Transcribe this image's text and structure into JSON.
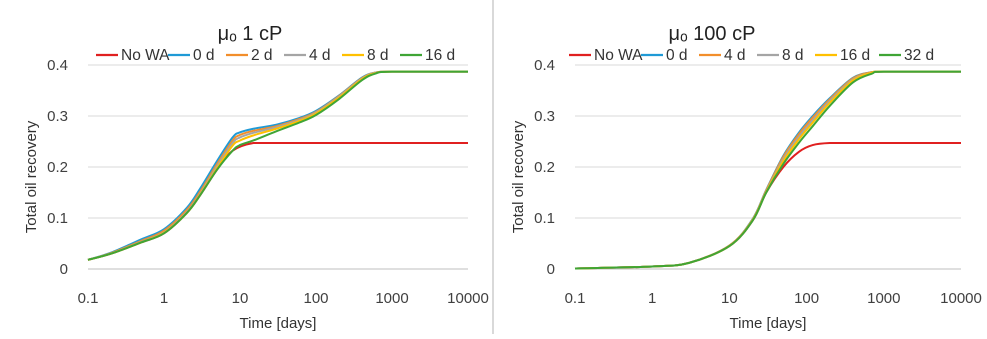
{
  "chart_data": [
    {
      "type": "line",
      "title": "μₒ 1 cP",
      "xlabel": "Time [days]",
      "ylabel": "Total oil recovery",
      "x_scale": "log",
      "xlim": [
        0.1,
        10000
      ],
      "ylim": [
        0,
        0.4
      ],
      "x_ticks": [
        "0.1",
        "1",
        "10",
        "100",
        "1000",
        "10000"
      ],
      "y_ticks": [
        "0",
        "0.1",
        "0.2",
        "0.3",
        "0.4"
      ],
      "grid": "horizontal",
      "legend_position": "top",
      "series": [
        {
          "name": "No WA",
          "color": "#e02020",
          "x": [
            0.1,
            0.2,
            0.5,
            1,
            2,
            3,
            5,
            8,
            15,
            30,
            100,
            1000,
            10000
          ],
          "y": [
            0.018,
            0.03,
            0.052,
            0.07,
            0.11,
            0.145,
            0.195,
            0.232,
            0.247,
            0.247,
            0.247,
            0.247,
            0.247
          ]
        },
        {
          "name": "0 d",
          "color": "#1f9ad6",
          "x": [
            0.1,
            0.2,
            0.5,
            1,
            2,
            3,
            5,
            8,
            10,
            15,
            30,
            60,
            100,
            200,
            400,
            600,
            1000,
            10000
          ],
          "y": [
            0.018,
            0.032,
            0.058,
            0.078,
            0.12,
            0.158,
            0.212,
            0.258,
            0.268,
            0.275,
            0.283,
            0.296,
            0.31,
            0.34,
            0.375,
            0.385,
            0.387,
            0.387
          ]
        },
        {
          "name": "2 d",
          "color": "#f28e2b",
          "x": [
            0.1,
            0.2,
            0.5,
            1,
            2,
            3,
            5,
            8,
            10,
            15,
            30,
            60,
            100,
            200,
            400,
            600,
            1000,
            10000
          ],
          "y": [
            0.018,
            0.031,
            0.055,
            0.075,
            0.116,
            0.152,
            0.206,
            0.252,
            0.263,
            0.271,
            0.28,
            0.294,
            0.308,
            0.339,
            0.374,
            0.385,
            0.387,
            0.387
          ]
        },
        {
          "name": "4 d",
          "color": "#a5a5a5",
          "x": [
            0.1,
            0.2,
            0.5,
            1,
            2,
            3,
            5,
            8,
            10,
            15,
            30,
            60,
            100,
            200,
            400,
            600,
            1000,
            10000
          ],
          "y": [
            0.018,
            0.03,
            0.053,
            0.072,
            0.112,
            0.148,
            0.202,
            0.247,
            0.258,
            0.267,
            0.278,
            0.292,
            0.307,
            0.338,
            0.373,
            0.385,
            0.387,
            0.387
          ]
        },
        {
          "name": "8 d",
          "color": "#ffc000",
          "x": [
            0.1,
            0.2,
            0.5,
            1,
            2,
            3,
            5,
            8,
            10,
            15,
            30,
            60,
            100,
            200,
            400,
            600,
            1000,
            10000
          ],
          "y": [
            0.018,
            0.03,
            0.052,
            0.071,
            0.11,
            0.146,
            0.198,
            0.242,
            0.252,
            0.262,
            0.275,
            0.29,
            0.305,
            0.336,
            0.372,
            0.384,
            0.387,
            0.387
          ]
        },
        {
          "name": "16 d",
          "color": "#3fa535",
          "x": [
            0.1,
            0.2,
            0.5,
            1,
            2,
            3,
            5,
            8,
            10,
            15,
            30,
            60,
            100,
            200,
            400,
            600,
            1000,
            10000
          ],
          "y": [
            0.018,
            0.03,
            0.052,
            0.07,
            0.11,
            0.145,
            0.195,
            0.232,
            0.243,
            0.252,
            0.27,
            0.287,
            0.302,
            0.333,
            0.37,
            0.383,
            0.387,
            0.387
          ]
        }
      ]
    },
    {
      "type": "line",
      "title": "μₒ 100 cP",
      "xlabel": "Time [days]",
      "ylabel": "Total oil recovery",
      "x_scale": "log",
      "xlim": [
        0.1,
        10000
      ],
      "ylim": [
        0,
        0.4
      ],
      "x_ticks": [
        "0.1",
        "1",
        "10",
        "100",
        "1000",
        "10000"
      ],
      "y_ticks": [
        "0",
        "0.1",
        "0.2",
        "0.3",
        "0.4"
      ],
      "grid": "horizontal",
      "legend_position": "top",
      "series": [
        {
          "name": "No WA",
          "color": "#e02020",
          "x": [
            0.1,
            1,
            3,
            10,
            20,
            30,
            50,
            80,
            120,
            200,
            500,
            10000
          ],
          "y": [
            0.001,
            0.005,
            0.012,
            0.045,
            0.095,
            0.15,
            0.2,
            0.23,
            0.243,
            0.247,
            0.247,
            0.247
          ]
        },
        {
          "name": "0 d",
          "color": "#1f9ad6",
          "x": [
            0.1,
            1,
            3,
            10,
            20,
            30,
            50,
            80,
            120,
            200,
            400,
            700,
            1000,
            10000
          ],
          "y": [
            0.001,
            0.005,
            0.012,
            0.046,
            0.098,
            0.155,
            0.222,
            0.268,
            0.3,
            0.335,
            0.375,
            0.386,
            0.387,
            0.387
          ]
        },
        {
          "name": "4 d",
          "color": "#f28e2b",
          "x": [
            0.1,
            1,
            3,
            10,
            20,
            30,
            50,
            80,
            120,
            200,
            400,
            700,
            1000,
            10000
          ],
          "y": [
            0.001,
            0.005,
            0.012,
            0.046,
            0.097,
            0.154,
            0.22,
            0.265,
            0.297,
            0.333,
            0.374,
            0.386,
            0.387,
            0.387
          ]
        },
        {
          "name": "8 d",
          "color": "#a5a5a5",
          "x": [
            0.1,
            1,
            3,
            10,
            20,
            30,
            50,
            80,
            120,
            200,
            400,
            700,
            1000,
            10000
          ],
          "y": [
            0.001,
            0.005,
            0.012,
            0.045,
            0.096,
            0.152,
            0.216,
            0.26,
            0.292,
            0.33,
            0.372,
            0.385,
            0.387,
            0.387
          ]
        },
        {
          "name": "16 d",
          "color": "#ffc000",
          "x": [
            0.1,
            1,
            3,
            10,
            20,
            30,
            50,
            80,
            120,
            200,
            400,
            700,
            1000,
            10000
          ],
          "y": [
            0.001,
            0.005,
            0.012,
            0.045,
            0.096,
            0.151,
            0.212,
            0.255,
            0.287,
            0.326,
            0.37,
            0.385,
            0.387,
            0.387
          ]
        },
        {
          "name": "32 d",
          "color": "#3fa535",
          "x": [
            0.1,
            1,
            3,
            10,
            20,
            30,
            50,
            80,
            120,
            200,
            400,
            700,
            1000,
            10000
          ],
          "y": [
            0.001,
            0.005,
            0.012,
            0.045,
            0.095,
            0.15,
            0.206,
            0.248,
            0.28,
            0.32,
            0.366,
            0.383,
            0.387,
            0.387
          ]
        }
      ]
    }
  ]
}
